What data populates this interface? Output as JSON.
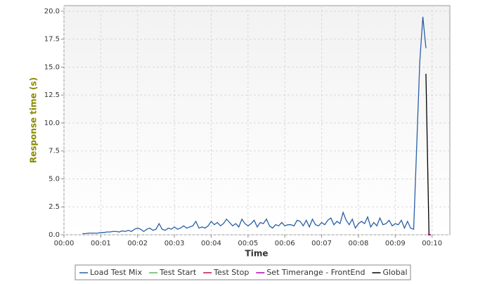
{
  "chart_data": {
    "type": "line",
    "x_label": "Time",
    "y_label": "Response time (s)",
    "xlim": [
      0,
      629
    ],
    "ylim": [
      0,
      20.5
    ],
    "xticks": [
      {
        "value": 0,
        "label": "00:00"
      },
      {
        "value": 60,
        "label": "00:01"
      },
      {
        "value": 120,
        "label": "00:02"
      },
      {
        "value": 180,
        "label": "00:03"
      },
      {
        "value": 240,
        "label": "00:04"
      },
      {
        "value": 300,
        "label": "00:05"
      },
      {
        "value": 360,
        "label": "00:06"
      },
      {
        "value": 420,
        "label": "00:07"
      },
      {
        "value": 480,
        "label": "00:08"
      },
      {
        "value": 540,
        "label": "00:09"
      },
      {
        "value": 600,
        "label": "00:10"
      }
    ],
    "yticks": [
      {
        "value": 0,
        "label": "0.0"
      },
      {
        "value": 2.5,
        "label": "2.5"
      },
      {
        "value": 5,
        "label": "5.0"
      },
      {
        "value": 7.5,
        "label": "7.5"
      },
      {
        "value": 10,
        "label": "10.0"
      },
      {
        "value": 12.5,
        "label": "12.5"
      },
      {
        "value": 15,
        "label": "15.0"
      },
      {
        "value": 17.5,
        "label": "17.5"
      },
      {
        "value": 20,
        "label": "20.0"
      }
    ],
    "grid": true,
    "series": [
      {
        "name": "Load Test Mix",
        "color": "#2a5fa5",
        "x": [
          30,
          35,
          40,
          45,
          50,
          55,
          60,
          65,
          70,
          75,
          80,
          85,
          90,
          95,
          100,
          105,
          110,
          115,
          120,
          125,
          130,
          135,
          140,
          145,
          150,
          155,
          160,
          165,
          170,
          175,
          180,
          185,
          190,
          195,
          200,
          205,
          210,
          215,
          220,
          225,
          230,
          235,
          240,
          245,
          250,
          255,
          260,
          265,
          270,
          275,
          280,
          285,
          290,
          295,
          300,
          305,
          310,
          315,
          320,
          325,
          330,
          335,
          340,
          345,
          350,
          355,
          360,
          365,
          370,
          375,
          380,
          385,
          390,
          395,
          400,
          405,
          410,
          415,
          420,
          425,
          430,
          435,
          440,
          445,
          450,
          455,
          460,
          465,
          470,
          475,
          480,
          485,
          490,
          495,
          500,
          505,
          510,
          515,
          520,
          525,
          530,
          535,
          540,
          545,
          550,
          555,
          560,
          565,
          570,
          575,
          580,
          585,
          590
        ],
        "values": [
          0.1,
          0.1,
          0.15,
          0.15,
          0.15,
          0.15,
          0.2,
          0.2,
          0.25,
          0.25,
          0.3,
          0.3,
          0.25,
          0.35,
          0.3,
          0.4,
          0.3,
          0.5,
          0.6,
          0.5,
          0.3,
          0.5,
          0.6,
          0.4,
          0.5,
          1.0,
          0.5,
          0.4,
          0.6,
          0.5,
          0.7,
          0.5,
          0.6,
          0.8,
          0.6,
          0.7,
          0.8,
          1.2,
          0.6,
          0.7,
          0.6,
          0.8,
          1.2,
          0.9,
          1.1,
          0.8,
          1.0,
          1.4,
          1.1,
          0.8,
          1.0,
          0.7,
          1.4,
          1.0,
          0.8,
          1.0,
          1.3,
          0.7,
          1.1,
          1.0,
          1.4,
          0.8,
          0.6,
          0.9,
          0.8,
          1.1,
          0.8,
          0.9,
          0.9,
          0.8,
          1.3,
          1.2,
          0.8,
          1.3,
          0.7,
          1.4,
          0.9,
          0.8,
          1.1,
          0.9,
          1.3,
          1.5,
          0.9,
          1.2,
          1.0,
          2.0,
          1.3,
          0.9,
          1.4,
          0.6,
          1.0,
          1.2,
          1.0,
          1.6,
          0.7,
          1.1,
          0.8,
          1.5,
          0.9,
          1.0,
          1.3,
          0.8,
          1.0,
          0.9,
          1.3,
          0.6,
          1.2,
          0.6,
          0.5,
          8.0,
          15.5,
          19.5,
          16.7
        ]
      },
      {
        "name": "Test Start",
        "color": "#5cb85c",
        "x": [
          596
        ],
        "values": [
          0
        ]
      },
      {
        "name": "Test Stop",
        "color": "#c0143c",
        "x": [
          597
        ],
        "values": [
          0
        ]
      },
      {
        "name": "Set Timerange - FrontEnd",
        "color": "#b000b0",
        "x": [
          593,
          598
        ],
        "values": [
          0,
          0
        ]
      },
      {
        "name": "Global",
        "color": "#000000",
        "x": [
          590,
          595
        ],
        "values": [
          14.4,
          0
        ]
      }
    ]
  }
}
